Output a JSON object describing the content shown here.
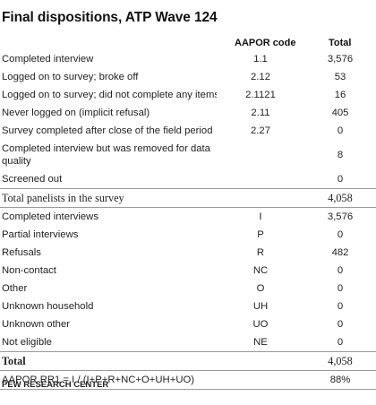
{
  "title": "Final dispositions, ATP Wave 124",
  "headers": {
    "code": "AAPOR code",
    "total": "Total"
  },
  "rows": [
    {
      "label": "Completed interview",
      "code": "1.1",
      "total": "3,576"
    },
    {
      "label": "Logged on to survey; broke off",
      "code": "2.12",
      "total": "53"
    },
    {
      "label": "Logged on to survey; did not complete any items",
      "code": "2.1121",
      "total": "16"
    },
    {
      "label": "Never logged on (implicit refusal)",
      "code": "2.11",
      "total": "405"
    },
    {
      "label": "Survey completed after close of the field period",
      "code": "2.27",
      "total": "0"
    },
    {
      "label": "Completed interview but was removed for data quality",
      "code": "",
      "total": "8"
    },
    {
      "label": "Screened out",
      "code": "",
      "total": "0"
    }
  ],
  "panelists": {
    "label": "Total panelists in the survey",
    "total": "4,058"
  },
  "summary_rows": [
    {
      "label": "Completed interviews",
      "code": "I",
      "total": "3,576"
    },
    {
      "label": "Partial interviews",
      "code": "P",
      "total": "0"
    },
    {
      "label": "Refusals",
      "code": "R",
      "total": "482"
    },
    {
      "label": "Non-contact",
      "code": "NC",
      "total": "0"
    },
    {
      "label": "Other",
      "code": "O",
      "total": "0"
    },
    {
      "label": "Unknown household",
      "code": "UH",
      "total": "0"
    },
    {
      "label": "Unknown other",
      "code": "UO",
      "total": "0"
    },
    {
      "label": "Not eligible",
      "code": "NE",
      "total": "0"
    }
  ],
  "grand_total": {
    "label": "Total",
    "total": "4,058"
  },
  "rr1": {
    "label": "AAPOR RR1 = I / (I+P+R+NC+O+UH+UO)",
    "total": "88%"
  },
  "source": "PEW RESEARCH CENTER"
}
